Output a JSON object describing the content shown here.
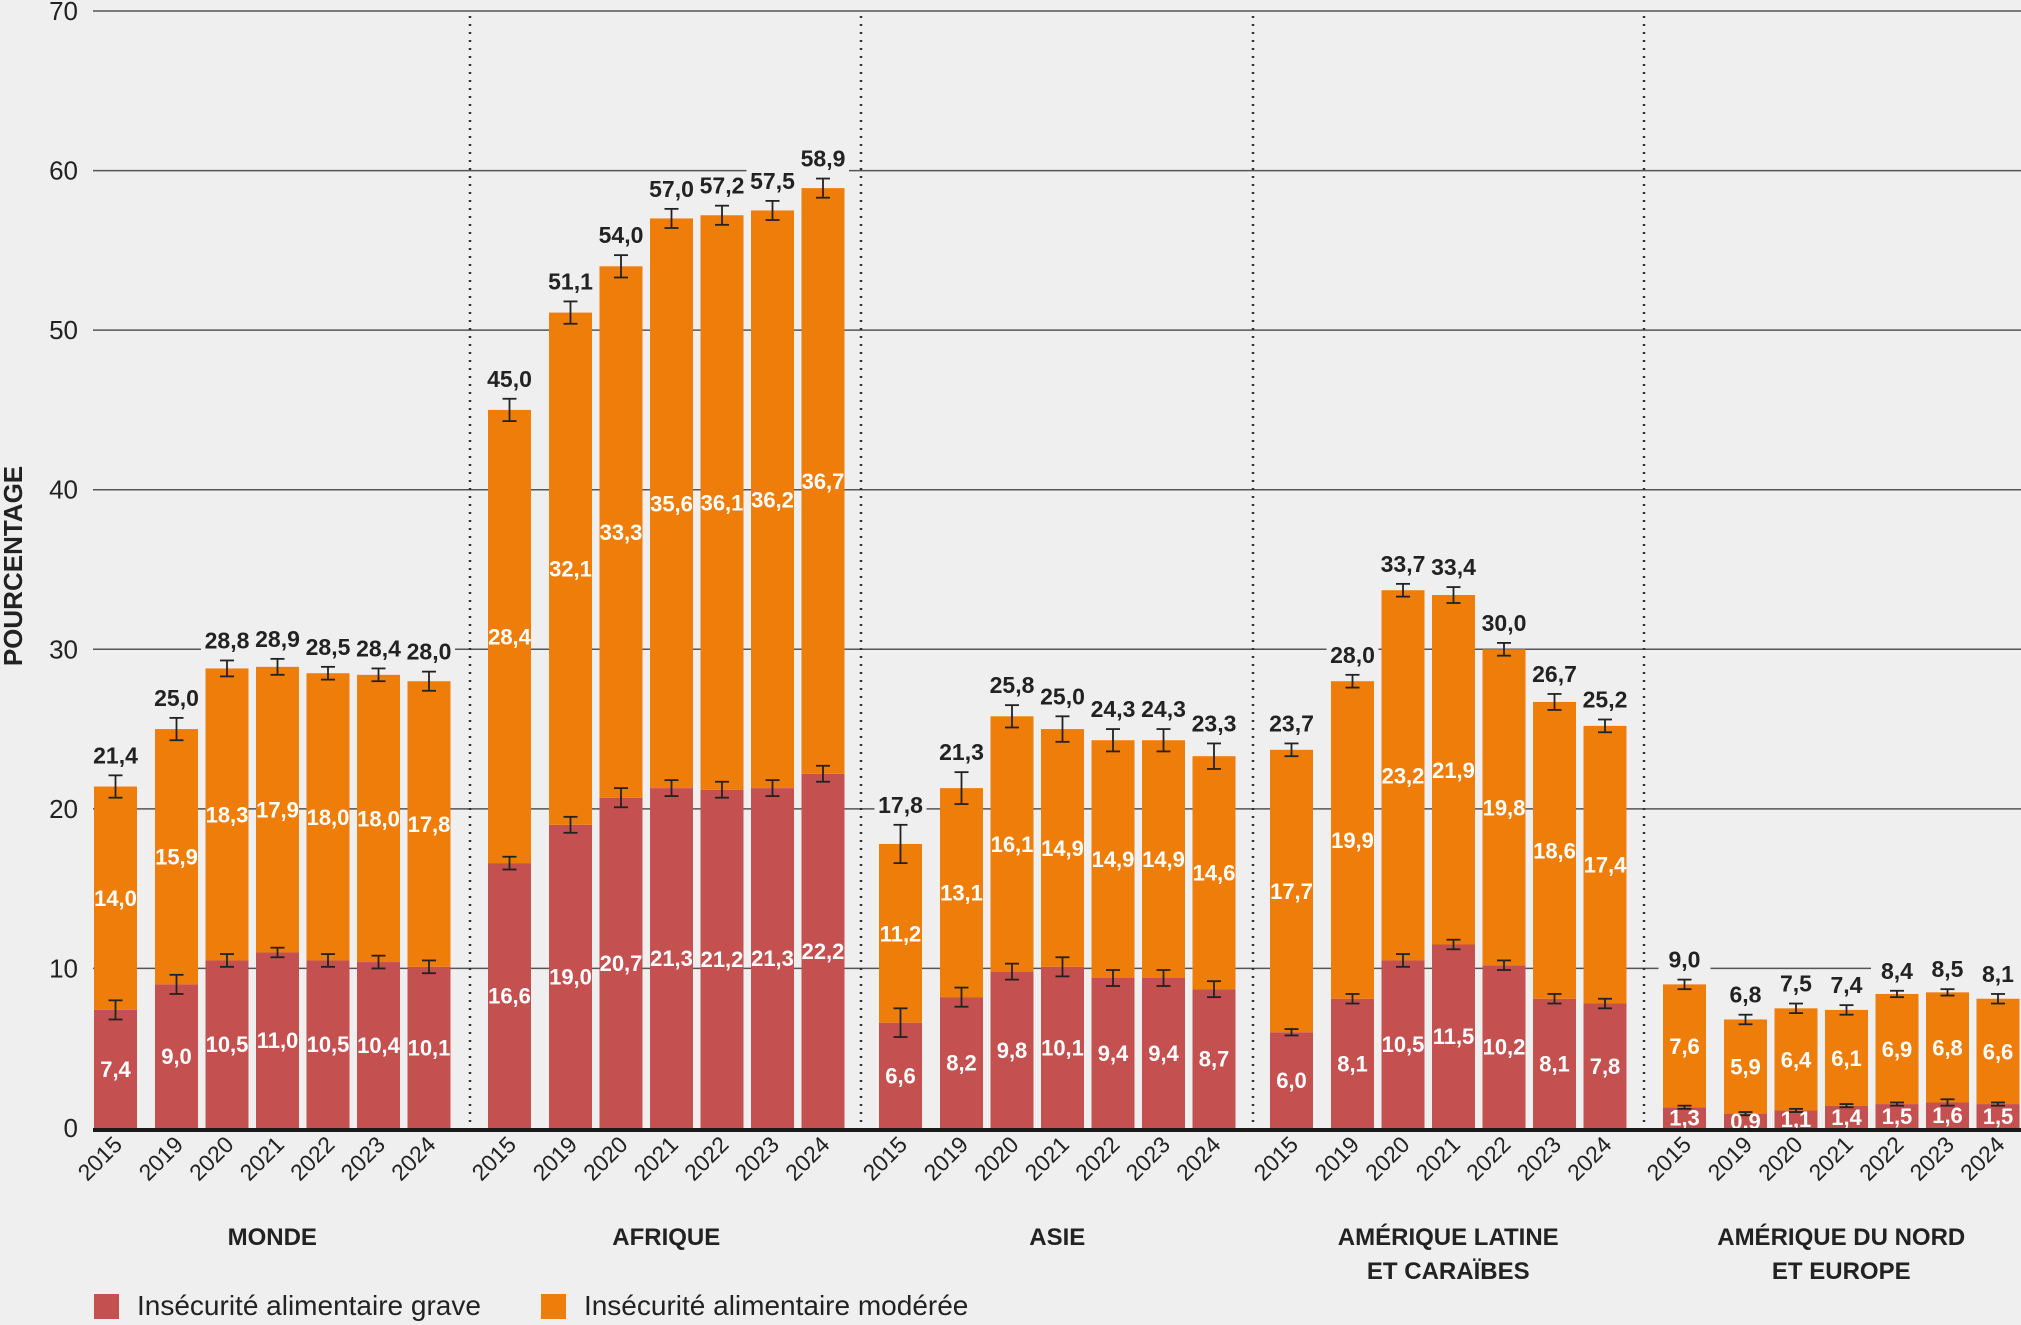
{
  "chart_data": {
    "type": "bar",
    "stacked": true,
    "title": "",
    "xlabel": "",
    "ylabel": "POURCENTAGE",
    "ylim": [
      0,
      70
    ],
    "yticks": [
      0,
      10,
      20,
      30,
      40,
      50,
      60,
      70
    ],
    "grid": true,
    "decimal_separator": ",",
    "legend_position": "bottom-left",
    "colors": {
      "grave": "#c45050",
      "moderee": "#ee7d0a",
      "background": "#efefef",
      "text": "#222222"
    },
    "legend": [
      {
        "key": "grave",
        "label": "Insécurité alimentaire grave"
      },
      {
        "key": "moderee",
        "label": "Insécurité alimentaire modérée"
      }
    ],
    "years": [
      "2015",
      "2019",
      "2020",
      "2021",
      "2022",
      "2023",
      "2024"
    ],
    "groups": [
      {
        "name": "MONDE",
        "label_lines": [
          "MONDE"
        ],
        "grave": [
          7.4,
          9.0,
          10.5,
          11.0,
          10.5,
          10.4,
          10.1
        ],
        "moderee": [
          14.0,
          15.9,
          18.3,
          17.9,
          18.0,
          18.0,
          17.8
        ],
        "total": [
          21.4,
          25.0,
          28.8,
          28.9,
          28.5,
          28.4,
          28.0
        ],
        "total_error": [
          0.7,
          0.7,
          0.5,
          0.5,
          0.4,
          0.4,
          0.6
        ],
        "grave_error": [
          0.6,
          0.6,
          0.4,
          0.3,
          0.4,
          0.4,
          0.4
        ]
      },
      {
        "name": "AFRIQUE",
        "label_lines": [
          "AFRIQUE"
        ],
        "grave": [
          16.6,
          19.0,
          20.7,
          21.3,
          21.2,
          21.3,
          22.2
        ],
        "moderee": [
          28.4,
          32.1,
          33.3,
          35.6,
          36.1,
          36.2,
          36.7
        ],
        "total": [
          45.0,
          51.1,
          54.0,
          57.0,
          57.2,
          57.5,
          58.9
        ],
        "total_error": [
          0.7,
          0.7,
          0.7,
          0.6,
          0.6,
          0.6,
          0.6
        ],
        "grave_error": [
          0.4,
          0.5,
          0.6,
          0.5,
          0.5,
          0.5,
          0.5
        ]
      },
      {
        "name": "ASIE",
        "label_lines": [
          "ASIE"
        ],
        "grave": [
          6.6,
          8.2,
          9.8,
          10.1,
          9.4,
          9.4,
          8.7
        ],
        "moderee": [
          11.2,
          13.1,
          16.1,
          14.9,
          14.9,
          14.9,
          14.6
        ],
        "total": [
          17.8,
          21.3,
          25.8,
          25.0,
          24.3,
          24.3,
          23.3
        ],
        "total_error": [
          1.2,
          1.0,
          0.7,
          0.8,
          0.7,
          0.7,
          0.8
        ],
        "grave_error": [
          0.9,
          0.6,
          0.5,
          0.6,
          0.5,
          0.5,
          0.5
        ]
      },
      {
        "name": "AMÉRIQUE LATINE ET CARAÏBES",
        "label_lines": [
          "AMÉRIQUE LATINE",
          "ET CARAÏBES"
        ],
        "grave": [
          6.0,
          8.1,
          10.5,
          11.5,
          10.2,
          8.1,
          7.8
        ],
        "moderee": [
          17.7,
          19.9,
          23.2,
          21.9,
          19.8,
          18.6,
          17.4
        ],
        "total": [
          23.7,
          28.0,
          33.7,
          33.4,
          30.0,
          26.7,
          25.2
        ],
        "total_error": [
          0.4,
          0.4,
          0.4,
          0.5,
          0.4,
          0.5,
          0.4
        ],
        "grave_error": [
          0.2,
          0.3,
          0.4,
          0.3,
          0.3,
          0.3,
          0.3
        ]
      },
      {
        "name": "AMÉRIQUE DU NORD ET EUROPE",
        "label_lines": [
          "AMÉRIQUE DU NORD",
          "ET EUROPE"
        ],
        "grave": [
          1.3,
          0.9,
          1.1,
          1.4,
          1.5,
          1.6,
          1.5
        ],
        "moderee": [
          7.6,
          5.9,
          6.4,
          6.1,
          6.9,
          6.8,
          6.6
        ],
        "total": [
          9.0,
          6.8,
          7.5,
          7.4,
          8.4,
          8.5,
          8.1
        ],
        "total_error": [
          0.3,
          0.3,
          0.3,
          0.3,
          0.2,
          0.2,
          0.3
        ],
        "grave_error": [
          0.1,
          0.1,
          0.1,
          0.1,
          0.1,
          0.2,
          0.1
        ]
      }
    ]
  }
}
